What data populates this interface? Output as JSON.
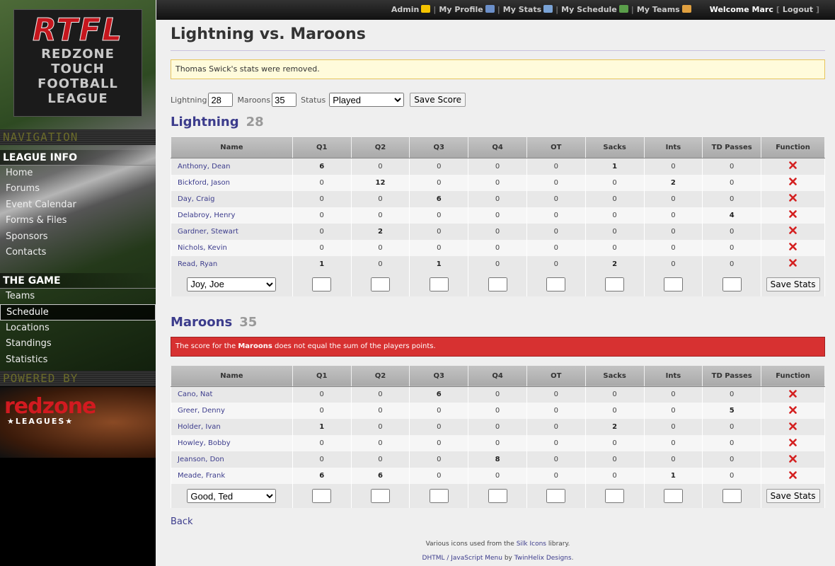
{
  "topnav": {
    "links": [
      "Admin",
      "My Profile",
      "My Stats",
      "My Schedule",
      "My Teams"
    ],
    "welcome": "Welcome Marc",
    "logout": "Logout"
  },
  "sidebar": {
    "logo": {
      "acronym": "RTFL",
      "lines": [
        "REDZONE",
        "TOUCH",
        "FOOTBALL",
        "LEAGUE"
      ]
    },
    "navigation_heading": "NAVIGATION",
    "sections": [
      {
        "title": "LEAGUE INFO",
        "links": [
          "Home",
          "Forums",
          "Event Calendar",
          "Forms & Files",
          "Sponsors",
          "Contacts"
        ]
      },
      {
        "title": "THE GAME",
        "links": [
          "Teams",
          "Schedule",
          "Locations",
          "Standings",
          "Statistics"
        ]
      }
    ],
    "powered_by": "POWERED BY",
    "sponsor": {
      "name": "redzone",
      "sub": "★LEAGUES★"
    }
  },
  "main": {
    "title": "Lightning vs. Maroons",
    "notice": "Thomas Swick's stats were removed.",
    "score_form": {
      "team1_label": "Lightning",
      "team1_score": "28",
      "team2_label": "Maroons",
      "team2_score": "35",
      "status_label": "Status",
      "status": "Played",
      "button": "Save Score"
    },
    "teams": [
      {
        "name": "Lightning",
        "score": 28,
        "columns": [
          "Name",
          "Q1",
          "Q2",
          "Q3",
          "Q4",
          "OT",
          "Sacks",
          "Ints",
          "TD Passes",
          "Function"
        ],
        "rows": [
          [
            "Anthony, Dean",
            6,
            0,
            0,
            0,
            0,
            1,
            0,
            0
          ],
          [
            "Bickford, Jason",
            0,
            12,
            0,
            0,
            0,
            0,
            2,
            0
          ],
          [
            "Day, Craig",
            0,
            0,
            6,
            0,
            0,
            0,
            0,
            0
          ],
          [
            "Delabroy, Henry",
            0,
            0,
            0,
            0,
            0,
            0,
            0,
            4
          ],
          [
            "Gardner, Stewart",
            0,
            2,
            0,
            0,
            0,
            0,
            0,
            0
          ],
          [
            "Nichols, Kevin",
            0,
            0,
            0,
            0,
            0,
            0,
            0,
            0
          ],
          [
            "Read, Ryan",
            1,
            0,
            1,
            0,
            0,
            2,
            0,
            0
          ]
        ],
        "select": "Joy, Joe",
        "button": "Save Stats"
      },
      {
        "name": "Maroons",
        "score": 35,
        "error": [
          "The score for the",
          "Maroons",
          "does not equal the sum of the players points."
        ],
        "columns": [
          "Name",
          "Q1",
          "Q2",
          "Q3",
          "Q4",
          "OT",
          "Sacks",
          "Ints",
          "TD Passes",
          "Function"
        ],
        "rows": [
          [
            "Cano, Nat",
            0,
            0,
            6,
            0,
            0,
            0,
            0,
            0
          ],
          [
            "Greer, Denny",
            0,
            0,
            0,
            0,
            0,
            0,
            0,
            5
          ],
          [
            "Holder, Ivan",
            1,
            0,
            0,
            0,
            0,
            2,
            0,
            0
          ],
          [
            "Howley, Bobby",
            0,
            0,
            0,
            0,
            0,
            0,
            0,
            0
          ],
          [
            "Jeanson, Don",
            0,
            0,
            0,
            8,
            0,
            0,
            0,
            0
          ],
          [
            "Meade, Frank",
            6,
            6,
            0,
            0,
            0,
            0,
            1,
            0
          ]
        ],
        "select": "Good, Ted",
        "button": "Save Stats"
      }
    ],
    "back": "Back",
    "footer": {
      "line1": [
        "Various icons used from the",
        "Silk Icons",
        "library."
      ],
      "line2": [
        "DHTML / JavaScript Menu",
        "by",
        "TwinHelix Designs",
        "."
      ]
    }
  }
}
